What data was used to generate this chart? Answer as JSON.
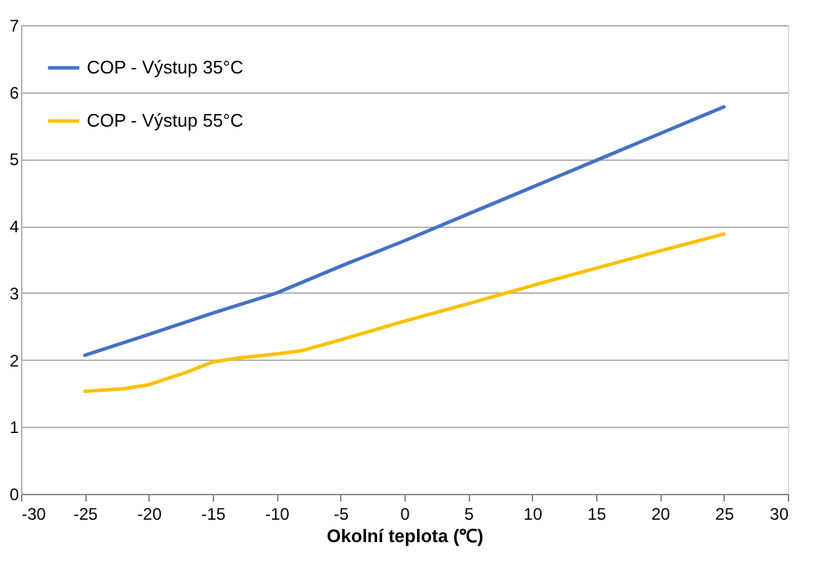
{
  "chart_data": {
    "type": "line",
    "xlabel": "Okolní teplota (℃)",
    "xlim": [
      -30,
      30
    ],
    "xticks": [
      -30,
      -25,
      -20,
      -15,
      -10,
      -5,
      0,
      5,
      10,
      15,
      20,
      25,
      30
    ],
    "ylim": [
      0,
      7
    ],
    "yticks": [
      0,
      1,
      2,
      3,
      4,
      5,
      6,
      7
    ],
    "grid": "y",
    "legend": "top left",
    "marker": "none",
    "line_style": "solid",
    "series": [
      {
        "name": "COP - Výstup 35°C",
        "color": "#4472c4",
        "x": [
          -25,
          -20,
          -15,
          -10,
          -5,
          0,
          5,
          10,
          15,
          20,
          25
        ],
        "values": [
          2.07,
          2.38,
          2.7,
          3.0,
          3.4,
          3.78,
          4.18,
          4.58,
          4.98,
          5.38,
          5.78
        ]
      },
      {
        "name": "COP - Výstup 55°C",
        "color": "#ffc000",
        "x": [
          -25,
          -22,
          -20,
          -17,
          -15,
          -13,
          -10,
          -8,
          -5,
          0,
          5,
          10,
          15,
          20,
          25
        ],
        "values": [
          1.53,
          1.57,
          1.63,
          1.82,
          1.97,
          2.03,
          2.09,
          2.14,
          2.3,
          2.58,
          2.84,
          3.11,
          3.37,
          3.63,
          3.88
        ]
      }
    ]
  }
}
